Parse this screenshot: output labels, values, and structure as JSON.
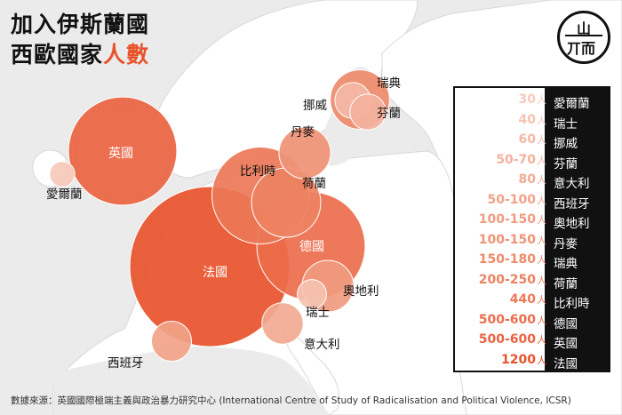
{
  "title": {
    "line1": "加入伊斯蘭國",
    "line2_main": "西歐國家",
    "line2_accent": "人數"
  },
  "logo": {
    "glyph_top": "山",
    "glyph_bottom": "丌而"
  },
  "source": "數據來源：英國國際極端主義與政治暴力研究中心 (International Centre of Study of Radicalisation and Political Violence, ICSR)",
  "colors": {
    "accent": "#e8532b",
    "land": "#ffffff",
    "sea": "#ebebeb"
  },
  "chart_data": {
    "type": "bubble-map",
    "unit": "人",
    "entries": [
      {
        "country": "愛爾蘭",
        "value_label": "30",
        "value": 30,
        "color": "#f6c9bb"
      },
      {
        "country": "瑞士",
        "value_label": "40",
        "value": 40,
        "color": "#f5c2b1"
      },
      {
        "country": "挪威",
        "value_label": "60",
        "value": 60,
        "color": "#f4b9a6"
      },
      {
        "country": "芬蘭",
        "value_label": "50-70",
        "value": 60,
        "color": "#f3b29d"
      },
      {
        "country": "意大利",
        "value_label": "80",
        "value": 80,
        "color": "#f2aa93"
      },
      {
        "country": "西班牙",
        "value_label": "50-100",
        "value": 75,
        "color": "#f1a389"
      },
      {
        "country": "奧地利",
        "value_label": "100-150",
        "value": 125,
        "color": "#f09b7f"
      },
      {
        "country": "丹麥",
        "value_label": "100-150",
        "value": 125,
        "color": "#ef9375"
      },
      {
        "country": "瑞典",
        "value_label": "150-180",
        "value": 165,
        "color": "#ee8a6b"
      },
      {
        "country": "荷蘭",
        "value_label": "200-250",
        "value": 225,
        "color": "#ed8261"
      },
      {
        "country": "比利時",
        "value_label": "440",
        "value": 440,
        "color": "#ec7857"
      },
      {
        "country": "德國",
        "value_label": "500-600",
        "value": 550,
        "color": "#eb6e4c"
      },
      {
        "country": "英國",
        "value_label": "500-600",
        "value": 550,
        "color": "#ea6341"
      },
      {
        "country": "法國",
        "value_label": "1200",
        "value": 1200,
        "color": "#e8532b"
      }
    ]
  }
}
